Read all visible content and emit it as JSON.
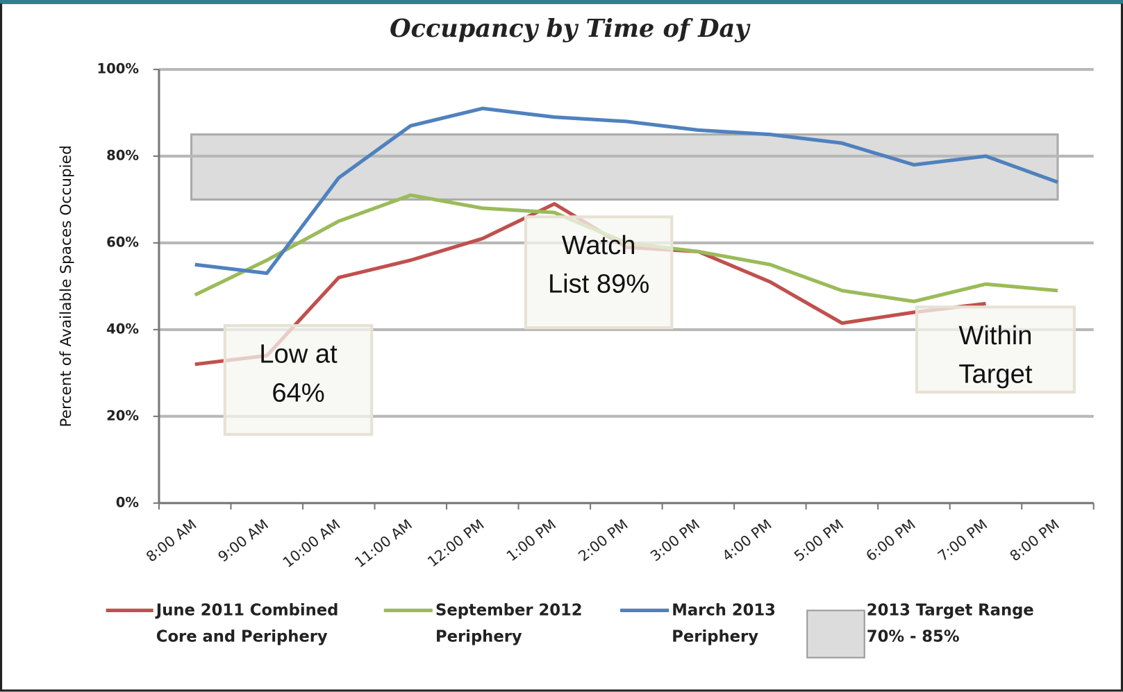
{
  "chart_data": {
    "type": "line",
    "title": "Occupancy by Time of Day",
    "y_label": "Percent of Available Spaces Occupied",
    "categories": [
      "8:00 AM",
      "9:00 AM",
      "10:00 AM",
      "11:00 AM",
      "12:00 PM",
      "1:00 PM",
      "2:00 PM",
      "3:00 PM",
      "4:00 PM",
      "5:00 PM",
      "6:00 PM",
      "7:00 PM",
      "8:00 PM"
    ],
    "series": [
      {
        "name": "June 2011 Combined Core and Periphery",
        "color": "#c0504d",
        "values": [
          32,
          34,
          52,
          56,
          61,
          69,
          59,
          58,
          51,
          41.5,
          44,
          46,
          null
        ]
      },
      {
        "name": "September 2012 Periphery",
        "color": "#9bbb59",
        "values": [
          48,
          56,
          65,
          71,
          68,
          67,
          60,
          58,
          55,
          49,
          46.5,
          50.5,
          49
        ]
      },
      {
        "name": "March 2013 Periphery",
        "color": "#4f81bd",
        "values": [
          55,
          53,
          75,
          87,
          91,
          89,
          88,
          86,
          85,
          83,
          78,
          80,
          74
        ]
      }
    ],
    "target_range": {
      "name": "2013 Target Range 70% - 85%",
      "color": "#dcdcdc",
      "range": [
        70,
        85
      ]
    },
    "ylim": [
      0,
      100
    ],
    "yticks": [
      {
        "value": 0,
        "label": "0%"
      },
      {
        "value": 20,
        "label": "20%"
      },
      {
        "value": 40,
        "label": "40%"
      },
      {
        "value": 60,
        "label": "60%"
      },
      {
        "value": 80,
        "label": "80%"
      },
      {
        "value": 100,
        "label": "100%"
      }
    ],
    "grid": true,
    "annotations": [
      {
        "text": "Low at 64%",
        "category": 1
      },
      {
        "text": "Watch List 89%",
        "category": 6
      },
      {
        "text": "Within Target",
        "category": 11
      }
    ]
  }
}
